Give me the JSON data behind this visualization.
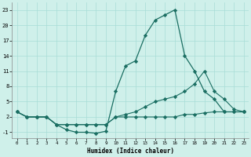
{
  "xlabel": "Humidex (Indice chaleur)",
  "bg_color": "#cff0ea",
  "grid_color": "#a8ddd6",
  "line_color": "#1a6e62",
  "xlim": [
    -0.5,
    23.5
  ],
  "ylim": [
    -2.2,
    24.5
  ],
  "yticks": [
    -1,
    2,
    5,
    8,
    11,
    14,
    17,
    20,
    23
  ],
  "xticks": [
    0,
    1,
    2,
    3,
    4,
    5,
    6,
    7,
    8,
    9,
    10,
    11,
    12,
    13,
    14,
    15,
    16,
    17,
    18,
    19,
    20,
    21,
    22,
    23
  ],
  "line1_x": [
    0,
    1,
    2,
    3,
    4,
    5,
    6,
    7,
    8,
    9,
    10,
    11,
    12,
    13,
    14,
    15,
    16,
    17,
    18,
    19,
    20,
    21,
    22,
    23
  ],
  "line1_y": [
    3,
    2,
    2,
    2,
    0.5,
    -0.5,
    -1,
    -1,
    -1.2,
    -0.8,
    7,
    12,
    13,
    18,
    21,
    22,
    23,
    14,
    11,
    7,
    5.5,
    3,
    3,
    3
  ],
  "line2_x": [
    0,
    1,
    2,
    3,
    4,
    5,
    6,
    7,
    8,
    9,
    10,
    11,
    12,
    13,
    14,
    15,
    16,
    17,
    18,
    19,
    20,
    21,
    22,
    23
  ],
  "line2_y": [
    3,
    2,
    2,
    2,
    0.5,
    0.5,
    0.5,
    0.5,
    0.5,
    0.5,
    2,
    2.5,
    3,
    4,
    5,
    5.5,
    6,
    7,
    8.5,
    11,
    7,
    5.5,
    3.5,
    3
  ],
  "line3_x": [
    0,
    1,
    2,
    3,
    4,
    5,
    6,
    7,
    8,
    9,
    10,
    11,
    12,
    13,
    14,
    15,
    16,
    17,
    18,
    19,
    20,
    21,
    22,
    23
  ],
  "line3_y": [
    3,
    2,
    2,
    2,
    0.5,
    0.5,
    0.5,
    0.5,
    0.5,
    0.5,
    2,
    2,
    2,
    2,
    2,
    2,
    2,
    2.5,
    2.5,
    2.8,
    3,
    3,
    3,
    3
  ]
}
